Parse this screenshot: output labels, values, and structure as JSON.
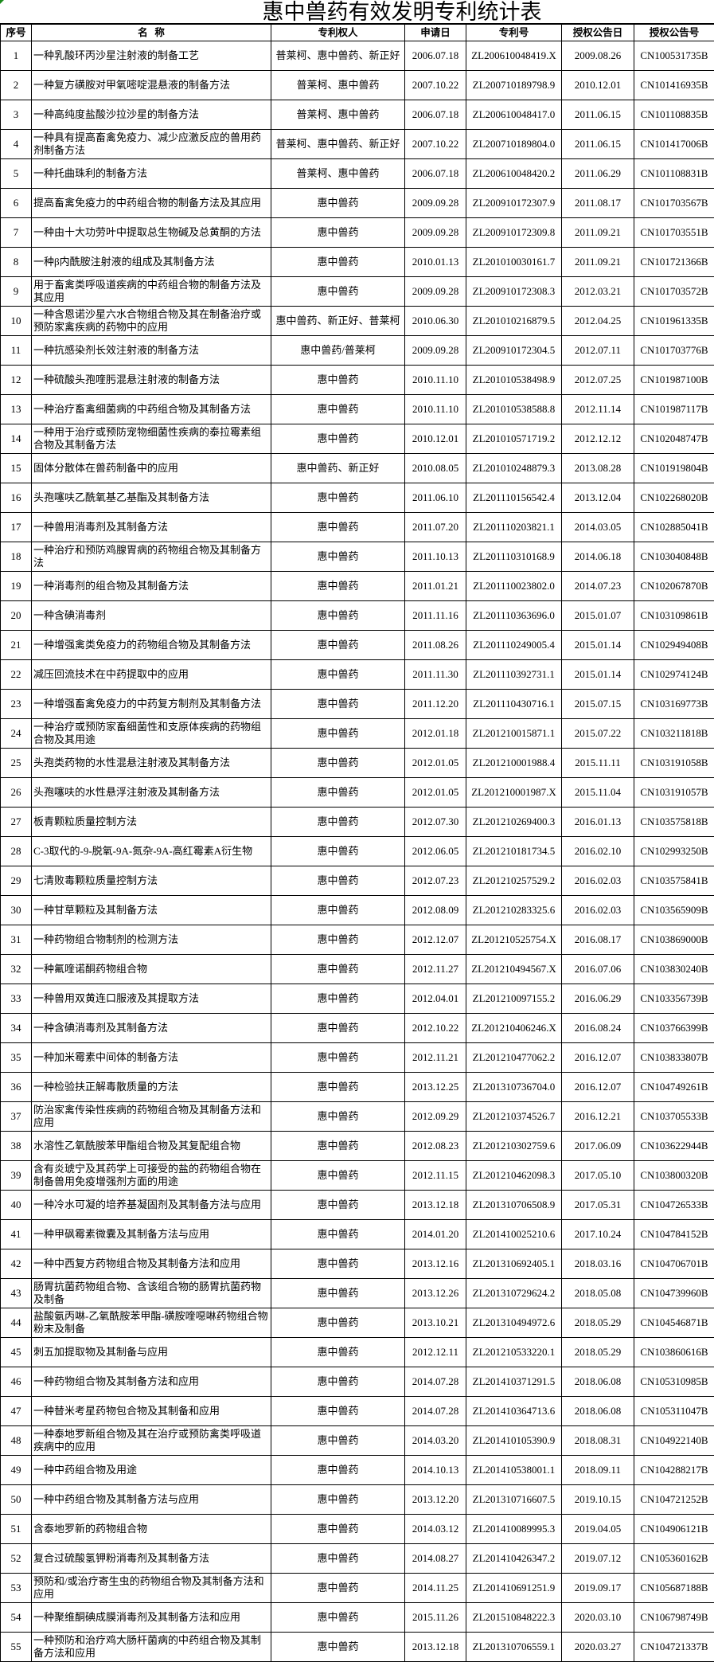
{
  "title": "惠中兽药有效发明专利统计表",
  "headers": [
    "序号",
    "名  称",
    "专利权人",
    "申请日",
    "专利号",
    "授权公告日",
    "授权公告号"
  ],
  "rows": [
    [
      "1",
      "一种乳酸环丙沙星注射液的制备工艺",
      "普莱柯、惠中兽药、新正好",
      "2006.07.18",
      "ZL200610048419.X",
      "2009.08.26",
      "CN100531735B"
    ],
    [
      "2",
      "一种复方磺胺对甲氧嘧啶混悬液的制备方法",
      "普莱柯、惠中兽药",
      "2007.10.22",
      "ZL200710189798.9",
      "2010.12.01",
      "CN101416935B"
    ],
    [
      "3",
      "一种高纯度盐酸沙拉沙星的制备方法",
      "普莱柯、惠中兽药",
      "2006.07.18",
      "ZL200610048417.0",
      "2011.06.15",
      "CN101108835B"
    ],
    [
      "4",
      "一种具有提高畜禽免疫力、减少应激反应的兽用药剂制备方法",
      "普莱柯、惠中兽药、新正好",
      "2007.10.22",
      "ZL200710189804.0",
      "2011.06.15",
      "CN101417006B"
    ],
    [
      "5",
      "一种托曲珠利的制备方法",
      "普莱柯、惠中兽药",
      "2006.07.18",
      "ZL200610048420.2",
      "2011.06.29",
      "CN101108831B"
    ],
    [
      "6",
      "提高畜禽免疫力的中药组合物的制备方法及其应用",
      "惠中兽药",
      "2009.09.28",
      "ZL200910172307.9",
      "2011.08.17",
      "CN101703567B"
    ],
    [
      "7",
      "一种由十大功劳叶中提取总生物碱及总黄酮的方法",
      "惠中兽药",
      "2009.09.28",
      "ZL200910172309.8",
      "2011.09.21",
      "CN101703551B"
    ],
    [
      "8",
      "一种β内酰胺注射液的组成及其制备方法",
      "惠中兽药",
      "2010.01.13",
      "ZL201010030161.7",
      "2011.09.21",
      "CN101721366B"
    ],
    [
      "9",
      "用于畜禽类呼吸道疾病的中药组合物的制备方法及其应用",
      "惠中兽药",
      "2009.09.28",
      "ZL200910172308.3",
      "2012.03.21",
      "CN101703572B"
    ],
    [
      "10",
      "一种含恩诺沙星六水合物组合物及其在制备治疗或预防家禽疾病的药物中的应用",
      "惠中兽药、新正好、普莱柯",
      "2010.06.30",
      "ZL201010216879.5",
      "2012.04.25",
      "CN101961335B"
    ],
    [
      "11",
      "一种抗感染剂长效注射液的制备方法",
      "惠中兽药/普莱柯",
      "2009.09.28",
      "ZL200910172304.5",
      "2012.07.11",
      "CN101703776B"
    ],
    [
      "12",
      "一种硫酸头孢喹肟混悬注射液的制备方法",
      "惠中兽药",
      "2010.11.10",
      "ZL201010538498.9",
      "2012.07.25",
      "CN101987100B"
    ],
    [
      "13",
      "一种治疗畜禽细菌病的中药组合物及其制备方法",
      "惠中兽药",
      "2010.11.10",
      "ZL201010538588.8",
      "2012.11.14",
      "CN101987117B"
    ],
    [
      "14",
      "一种用于治疗或预防宠物细菌性疾病的泰拉霉素组合物及其制备方法",
      "惠中兽药",
      "2010.12.01",
      "ZL201010571719.2",
      "2012.12.12",
      "CN102048747B"
    ],
    [
      "15",
      "固体分散体在兽药制备中的应用",
      "惠中兽药、新正好",
      "2010.08.05",
      "ZL201010248879.3",
      "2013.08.28",
      "CN101919804B"
    ],
    [
      "16",
      "头孢噻呋乙酰氧基乙基酯及其制备方法",
      "惠中兽药",
      "2011.06.10",
      "ZL201110156542.4",
      "2013.12.04",
      "CN102268020B"
    ],
    [
      "17",
      "一种兽用消毒剂及其制备方法",
      "惠中兽药",
      "2011.07.20",
      "ZL201110203821.1",
      "2014.03.05",
      "CN102885041B"
    ],
    [
      "18",
      "一种治疗和预防鸡腺胃病的药物组合物及其制备方法",
      "惠中兽药",
      "2011.10.13",
      "ZL201110310168.9",
      "2014.06.18",
      "CN103040848B"
    ],
    [
      "19",
      "一种消毒剂的组合物及其制备方法",
      "惠中兽药",
      "2011.01.21",
      "ZL201110023802.0",
      "2014.07.23",
      "CN102067870B"
    ],
    [
      "20",
      "一种含碘消毒剂",
      "惠中兽药",
      "2011.11.16",
      "ZL201110363696.0",
      "2015.01.07",
      "CN103109861B"
    ],
    [
      "21",
      "一种增强禽类免疫力的药物组合物及其制备方法",
      "惠中兽药",
      "2011.08.26",
      "ZL201110249005.4",
      "2015.01.14",
      "CN102949408B"
    ],
    [
      "22",
      "减压回流技术在中药提取中的应用",
      "惠中兽药",
      "2011.11.30",
      "ZL201110392731.1",
      "2015.01.14",
      "CN102974124B"
    ],
    [
      "23",
      "一种增强畜禽免疫力的中药复方制剂及其制备方法",
      "惠中兽药",
      "2011.12.20",
      "ZL201110430716.1",
      "2015.07.15",
      "CN103169773B"
    ],
    [
      "24",
      "一种治疗或预防家畜细菌性和支原体疾病的药物组合物及其用途",
      "惠中兽药",
      "2012.01.18",
      "ZL201210015871.1",
      "2015.07.22",
      "CN103211818B"
    ],
    [
      "25",
      "头孢类药物的水性混悬注射液及其制备方法",
      "惠中兽药",
      "2012.01.05",
      "ZL201210001988.4",
      "2015.11.11",
      "CN103191058B"
    ],
    [
      "26",
      "头孢噻呋的水性悬浮注射液及其制备方法",
      "惠中兽药",
      "2012.01.05",
      "ZL201210001987.X",
      "2015.11.04",
      "CN103191057B"
    ],
    [
      "27",
      "板青颗粒质量控制方法",
      "惠中兽药",
      "2012.07.30",
      "ZL201210269400.3",
      "2016.01.13",
      "CN103575818B"
    ],
    [
      "28",
      "C-3取代的-9-脱氧-9A-氮杂-9A-高红霉素A衍生物",
      "惠中兽药",
      "2012.06.05",
      "ZL201210181734.5",
      "2016.02.10",
      "CN102993250B"
    ],
    [
      "29",
      "七清败毒颗粒质量控制方法",
      "惠中兽药",
      "2012.07.23",
      "ZL201210257529.2",
      "2016.02.03",
      "CN103575841B"
    ],
    [
      "30",
      "一种甘草颗粒及其制备方法",
      "惠中兽药",
      "2012.08.09",
      "ZL201210283325.6",
      "2016.02.03",
      "CN103565909B"
    ],
    [
      "31",
      "一种药物组合物制剂的检测方法",
      "惠中兽药",
      "2012.12.07",
      "ZL201210525754.X",
      "2016.08.17",
      "CN103869000B"
    ],
    [
      "32",
      "一种氟喹诺酮药物组合物",
      "惠中兽药",
      "2012.11.27",
      "ZL201210494567.X",
      "2016.07.06",
      "CN103830240B"
    ],
    [
      "33",
      "一种兽用双黄连口服液及其提取方法",
      "惠中兽药",
      "2012.04.01",
      "ZL201210097155.2",
      "2016.06.29",
      "CN103356739B"
    ],
    [
      "34",
      "一种含碘消毒剂及其制备方法",
      "惠中兽药",
      "2012.10.22",
      "ZL201210406246.X",
      "2016.08.24",
      "CN103766399B"
    ],
    [
      "35",
      "一种加米霉素中间体的制备方法",
      "惠中兽药",
      "2012.11.21",
      "ZL201210477062.2",
      "2016.12.07",
      "CN103833807B"
    ],
    [
      "36",
      "一种检验扶正解毒散质量的方法",
      "惠中兽药",
      "2013.12.25",
      "ZL201310736704.0",
      "2016.12.07",
      "CN104749261B"
    ],
    [
      "37",
      "防治家禽传染性疾病的药物组合物及其制备方法和应用",
      "惠中兽药",
      "2012.09.29",
      "ZL201210374526.7",
      "2016.12.21",
      "CN103705533B"
    ],
    [
      "38",
      "水溶性乙氧酰胺苯甲酯组合物及其复配组合物",
      "惠中兽药",
      "2012.08.23",
      "ZL201210302759.6",
      "2017.06.09",
      "CN103622944B"
    ],
    [
      "39",
      "含有炎琥宁及其药学上可接受的盐的药物组合物在制备兽用免疫增强剂方面的用途",
      "惠中兽药",
      "2012.11.15",
      "ZL201210462098.3",
      "2017.05.10",
      "CN103800320B"
    ],
    [
      "40",
      "一种冷水可凝的培养基凝固剂及其制备方法与应用",
      "惠中兽药",
      "2013.12.18",
      "ZL201310706508.9",
      "2017.05.31",
      "CN104726533B"
    ],
    [
      "41",
      "一种甲砜霉素微囊及其制备方法与应用",
      "惠中兽药",
      "2014.01.20",
      "ZL201410025210.6",
      "2017.10.24",
      "CN104784152B"
    ],
    [
      "42",
      "一种中西复方药物组合物及其制备方法和应用",
      "惠中兽药",
      "2013.12.16",
      "ZL201310692405.1",
      "2018.03.16",
      "CN104706701B"
    ],
    [
      "43",
      "肠胃抗菌药物组合物、含该组合物的肠胃抗菌药物及制备",
      "惠中兽药",
      "2013.12.26",
      "ZL201310729624.2",
      "2018.05.08",
      "CN104739960B"
    ],
    [
      "44",
      "盐酸氨丙啉-乙氧酰胺苯甲酯-磺胺喹噁啉药物组合物粉末及制备",
      "惠中兽药",
      "2013.10.21",
      "ZL201310494972.6",
      "2018.05.29",
      "CN104546871B"
    ],
    [
      "45",
      "刺五加提取物及其制备与应用",
      "惠中兽药",
      "2012.12.11",
      "ZL201210533220.1",
      "2018.05.29",
      "CN103860616B"
    ],
    [
      "46",
      "一种药物组合物及其制备方法和应用",
      "惠中兽药",
      "2014.07.28",
      "ZL201410371291.5",
      "2018.06.08",
      "CN105310985B"
    ],
    [
      "47",
      "一种替米考星药物包合物及其制备和应用",
      "惠中兽药",
      "2014.07.28",
      "ZL201410364713.6",
      "2018.06.08",
      "CN105311047B"
    ],
    [
      "48",
      "一种泰地罗新组合物及其在治疗或预防禽类呼吸道疾病中的应用",
      "惠中兽药",
      "2014.03.20",
      "ZL201410105390.9",
      "2018.08.31",
      "CN104922140B"
    ],
    [
      "49",
      "一种中药组合物及用途",
      "惠中兽药",
      "2014.10.13",
      "ZL201410538001.1",
      "2018.09.11",
      "CN104288217B"
    ],
    [
      "50",
      "一种中药组合物及其制备方法与应用",
      "惠中兽药",
      "2013.12.20",
      "ZL201310716607.5",
      "2019.10.15",
      "CN104721252B"
    ],
    [
      "51",
      "含泰地罗新的药物组合物",
      "惠中兽药",
      "2014.03.12",
      "ZL201410089995.3",
      "2019.04.05",
      "CN104906121B"
    ],
    [
      "52",
      "复合过硫酸氢钾粉消毒剂及其制备方法",
      "惠中兽药",
      "2014.08.27",
      "ZL201410426347.2",
      "2019.07.12",
      "CN105360162B"
    ],
    [
      "53",
      "预防和/或治疗寄生虫的药物组合物及其制备方法和应用",
      "惠中兽药",
      "2014.11.25",
      "ZL201410691251.9",
      "2019.09.17",
      "CN105687188B"
    ],
    [
      "54",
      "一种聚维酮碘成膜消毒剂及其制备方法和应用",
      "惠中兽药",
      "2015.11.26",
      "ZL201510848222.3",
      "2020.03.10",
      "CN106798749B"
    ],
    [
      "55",
      "一种预防和治疗鸡大肠杆菌病的中药组合物及其制备方法和应用",
      "惠中兽药",
      "2013.12.18",
      "ZL201310706559.1",
      "2020.03.27",
      "CN104721337B"
    ]
  ]
}
